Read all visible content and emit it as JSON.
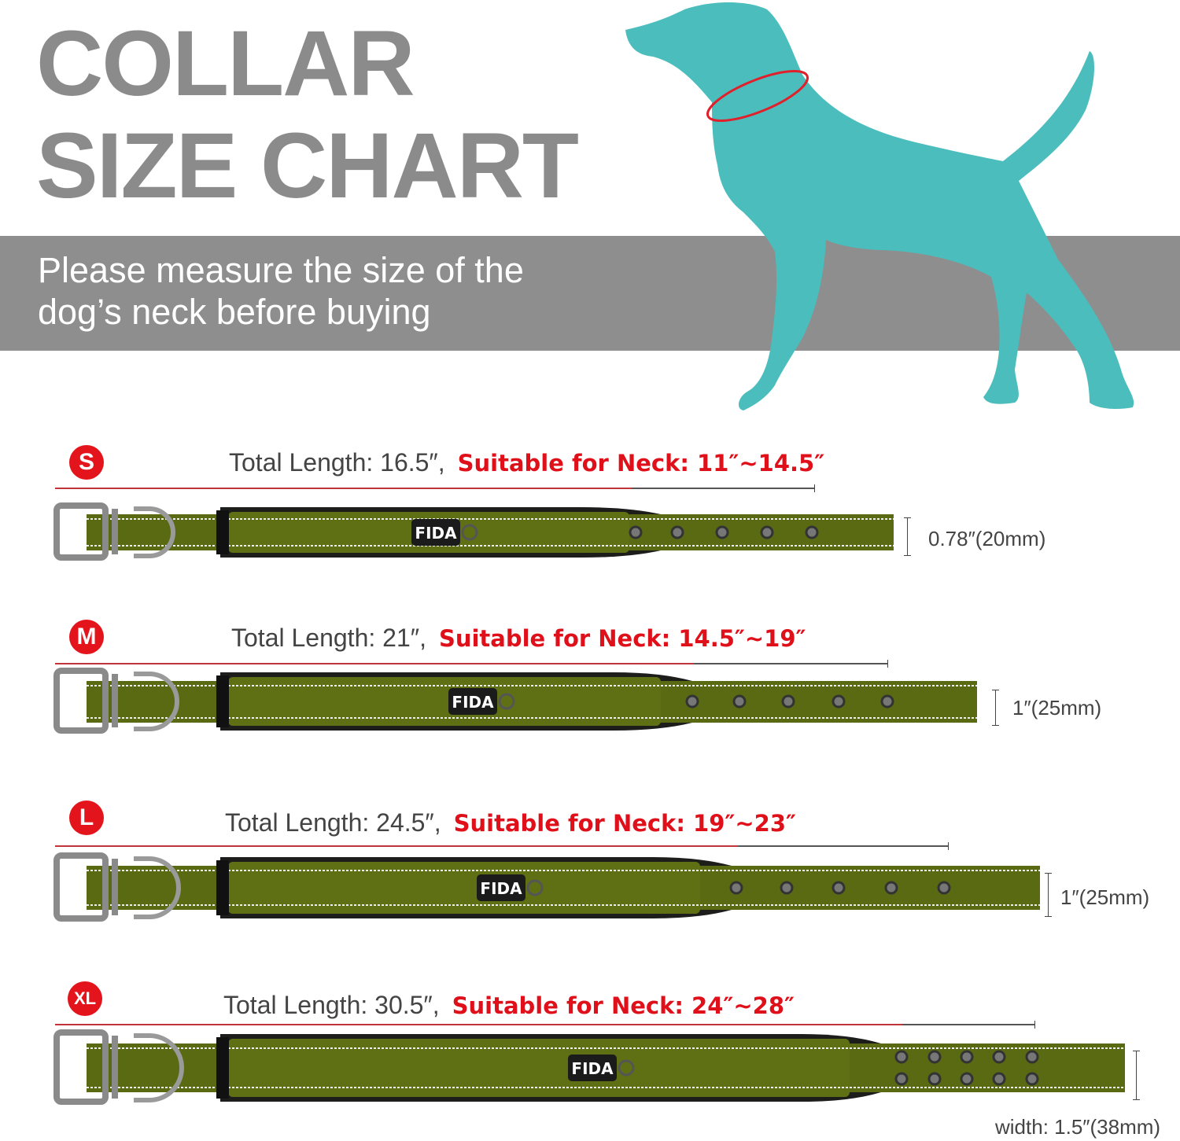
{
  "title": {
    "line1": "COLLAR",
    "line2": "SIZE CHART"
  },
  "intro": {
    "line1": "Please measure the size of the",
    "line2": "dog’s neck before buying"
  },
  "colors": {
    "title": "#8b8b8b",
    "band": "#8e8e8e",
    "dog": "#4bbdbd",
    "accent_red": "#e0101a",
    "collar_green": "#5a6a12"
  },
  "brand_logo": "FIDA",
  "sizes": [
    {
      "badge": "S",
      "total_length": "Total Length: 16.5″,",
      "neck": "Suitable for Neck: 11″~14.5″",
      "width": "0.78″(20mm)"
    },
    {
      "badge": "M",
      "total_length": "Total Length: 21″,",
      "neck": "Suitable for Neck: 14.5″~19″",
      "width": "1″(25mm)"
    },
    {
      "badge": "L",
      "total_length": "Total Length: 24.5″,",
      "neck": "Suitable for Neck: 19″~23″",
      "width": "1″(25mm)"
    },
    {
      "badge": "XL",
      "total_length": "Total Length: 30.5″,",
      "neck": "Suitable for Neck: 24″~28″",
      "width": "width: 1.5″(38mm)"
    }
  ]
}
